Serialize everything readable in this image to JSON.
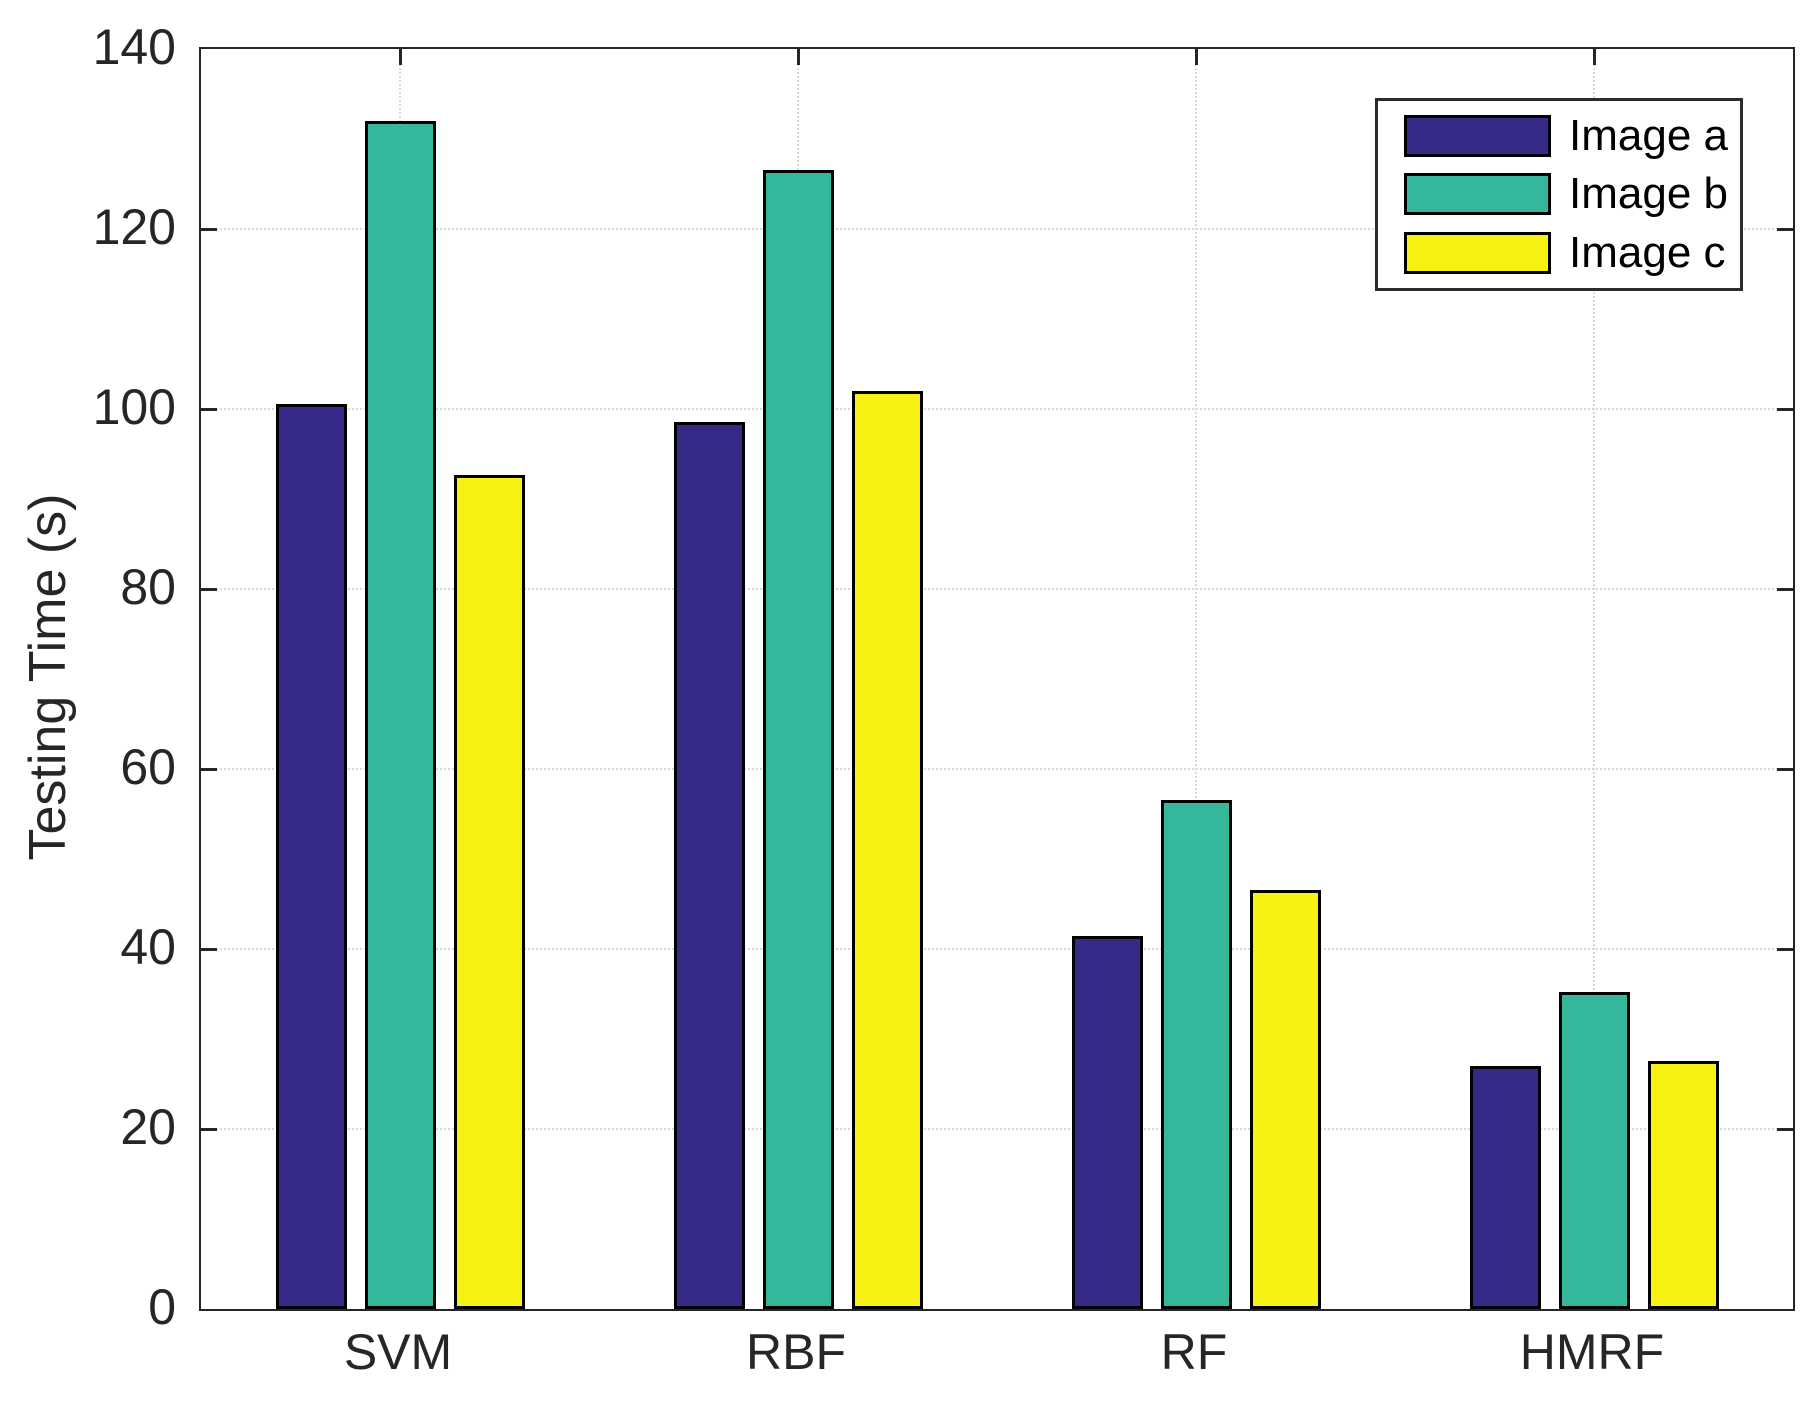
{
  "chart_data": {
    "type": "bar",
    "title": "",
    "categories": [
      "SVM",
      "RBF",
      "RF",
      "HMRF"
    ],
    "series": [
      {
        "name": "Image a",
        "color": "#352A87",
        "values": [
          100.5,
          98.6,
          41.4,
          27.0
        ]
      },
      {
        "name": "Image b",
        "color": "#35B79B",
        "values": [
          132.0,
          126.5,
          56.5,
          35.2
        ]
      },
      {
        "name": "Image c",
        "color": "#F7F213",
        "values": [
          92.7,
          102.0,
          46.6,
          27.6
        ]
      }
    ],
    "xlabel": "",
    "ylabel": "Testing Time (s)",
    "ylim": [
      0,
      140
    ],
    "yticks": [
      0,
      20,
      40,
      60,
      80,
      100,
      120,
      140
    ],
    "grid": "on",
    "legend_position": "top-right",
    "bar_edge_color": "#000000",
    "axis_color": "#262626",
    "grid_color": "#d9d9d9",
    "plot_background": "#ffffff"
  }
}
